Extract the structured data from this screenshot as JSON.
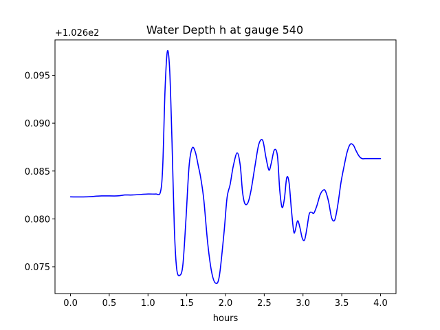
{
  "chart_data": {
    "type": "line",
    "title": "Water Depth h at gauge 540",
    "xlabel": "hours",
    "ylabel": "",
    "offset_text": "+1.026e2",
    "xlim": [
      -0.2,
      4.2
    ],
    "ylim": [
      0.0722,
      0.0987
    ],
    "xticks": [
      0.0,
      0.5,
      1.0,
      1.5,
      2.0,
      2.5,
      3.0,
      3.5,
      4.0
    ],
    "xtick_labels": [
      "0.0",
      "0.5",
      "1.0",
      "1.5",
      "2.0",
      "2.5",
      "3.0",
      "3.5",
      "4.0"
    ],
    "yticks": [
      0.075,
      0.08,
      0.085,
      0.09,
      0.095
    ],
    "ytick_labels": [
      "0.075",
      "0.080",
      "0.085",
      "0.090",
      "0.095"
    ],
    "grid": false,
    "legend": "none",
    "series": [
      {
        "color": "#0000ff",
        "x": [
          0.0,
          0.2,
          0.4,
          0.6,
          0.7,
          0.8,
          1.0,
          1.1,
          1.16,
          1.19,
          1.22,
          1.25,
          1.28,
          1.31,
          1.34,
          1.37,
          1.41,
          1.45,
          1.49,
          1.53,
          1.57,
          1.61,
          1.65,
          1.68,
          1.72,
          1.77,
          1.82,
          1.87,
          1.92,
          1.98,
          2.02,
          2.06,
          2.1,
          2.15,
          2.19,
          2.22,
          2.25,
          2.29,
          2.33,
          2.38,
          2.43,
          2.48,
          2.52,
          2.56,
          2.59,
          2.63,
          2.67,
          2.7,
          2.73,
          2.76,
          2.79,
          2.82,
          2.85,
          2.88,
          2.9,
          2.93,
          2.96,
          2.99,
          3.02,
          3.05,
          3.08,
          3.11,
          3.14,
          3.18,
          3.22,
          3.26,
          3.29,
          3.33,
          3.37,
          3.41,
          3.45,
          3.49,
          3.53,
          3.57,
          3.61,
          3.65,
          3.68,
          3.72,
          3.76,
          3.8,
          3.84,
          3.88,
          3.92,
          3.96,
          4.0
        ],
        "y": [
          0.0823,
          0.0823,
          0.0824,
          0.0824,
          0.0825,
          0.0825,
          0.0826,
          0.0826,
          0.0828,
          0.0855,
          0.0935,
          0.0975,
          0.0955,
          0.088,
          0.079,
          0.0748,
          0.0741,
          0.0752,
          0.08,
          0.0855,
          0.0874,
          0.087,
          0.0855,
          0.0843,
          0.082,
          0.0775,
          0.0745,
          0.0733,
          0.074,
          0.0785,
          0.0822,
          0.0836,
          0.0855,
          0.0869,
          0.0856,
          0.0828,
          0.0816,
          0.0817,
          0.083,
          0.0855,
          0.0878,
          0.0882,
          0.0865,
          0.0851,
          0.0858,
          0.0872,
          0.0866,
          0.083,
          0.0812,
          0.0821,
          0.0843,
          0.0838,
          0.081,
          0.0787,
          0.0788,
          0.0798,
          0.0791,
          0.078,
          0.0778,
          0.079,
          0.0805,
          0.0807,
          0.0806,
          0.0814,
          0.0825,
          0.083,
          0.0829,
          0.0818,
          0.0801,
          0.0799,
          0.0815,
          0.0838,
          0.0855,
          0.087,
          0.0878,
          0.0877,
          0.0872,
          0.0866,
          0.0863,
          0.0863,
          0.0863,
          0.0863,
          0.0863,
          0.0863,
          0.0863
        ]
      }
    ]
  }
}
